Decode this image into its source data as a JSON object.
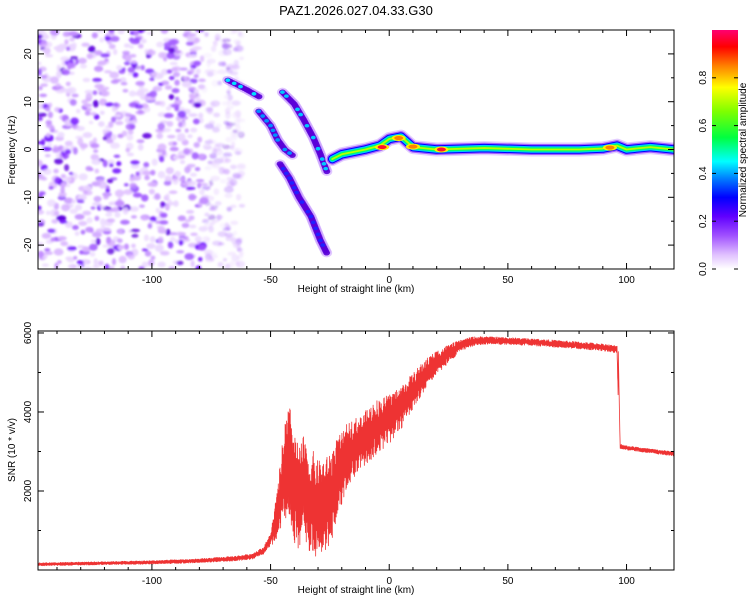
{
  "chart_data": [
    {
      "id": "spectrogram",
      "type": "heatmap",
      "title": "PAZ1.2026.027.04.33.G30",
      "xlabel": "Height of straight line (km)",
      "ylabel": "Frequency (Hz)",
      "xlim": [
        -148,
        120
      ],
      "ylim": [
        -25,
        25
      ],
      "xticks": [
        -100,
        -50,
        0,
        50,
        100
      ],
      "yticks": [
        -20,
        -10,
        0,
        10,
        20
      ],
      "colorbar": {
        "label": "Normalized spectral amplitude",
        "range": [
          0,
          1
        ],
        "ticks": [
          "0.0",
          "0.2",
          "0.4",
          "0.6",
          "0.8"
        ],
        "colors": [
          "#ffffff",
          "#c080ff",
          "#7000ff",
          "#0000ff",
          "#00ffff",
          "#00ff00",
          "#ffff00",
          "#ff8000",
          "#ff0000",
          "#ff0080"
        ]
      },
      "features": {
        "noise_region_x": [
          -148,
          -68
        ],
        "main_ridge": [
          [
            -68,
            14.5
          ],
          [
            -60,
            12.5
          ],
          [
            -54,
            10.8
          ]
        ],
        "upper_branch": [
          [
            -45,
            12
          ],
          [
            -40,
            9.5
          ],
          [
            -36,
            6.2
          ],
          [
            -32,
            2.5
          ],
          [
            -29,
            -1
          ],
          [
            -26,
            -5
          ]
        ],
        "middle_branch": [
          [
            -55,
            8
          ],
          [
            -50,
            5
          ],
          [
            -47,
            2
          ],
          [
            -44,
            0
          ],
          [
            -40,
            -1.5
          ]
        ],
        "lower_branch": [
          [
            -46,
            -3
          ],
          [
            -42,
            -6
          ],
          [
            -38,
            -10
          ],
          [
            -33,
            -14
          ],
          [
            -29,
            -19
          ],
          [
            -26,
            -22
          ]
        ],
        "tone_track": [
          [
            -24,
            -2
          ],
          [
            -20,
            -1
          ],
          [
            -10,
            0
          ],
          [
            -4,
            0.8
          ],
          [
            0,
            2.2
          ],
          [
            5,
            2.7
          ],
          [
            10,
            0.5
          ],
          [
            20,
            0
          ],
          [
            40,
            0.3
          ],
          [
            60,
            0
          ],
          [
            80,
            0
          ],
          [
            90,
            0.2
          ],
          [
            96,
            0.8
          ],
          [
            100,
            0
          ],
          [
            110,
            0.5
          ],
          [
            120,
            0
          ]
        ],
        "peaks": [
          [
            -3,
            0.5
          ],
          [
            22,
            0
          ],
          [
            93,
            0.4
          ],
          [
            4,
            2.4
          ],
          [
            10,
            0.6
          ]
        ]
      }
    },
    {
      "id": "snr",
      "type": "line",
      "xlabel": "Height of straight line (km)",
      "ylabel": "SNR (10 * v/v)",
      "xlim": [
        -148,
        120
      ],
      "ylim": [
        0,
        6050
      ],
      "xticks": [
        -100,
        -50,
        0,
        50,
        100
      ],
      "yticks": [
        2000,
        4000,
        6000
      ],
      "series": [
        {
          "name": "SNR",
          "color": "#ee3333",
          "x": [
            -148,
            -120,
            -100,
            -80,
            -65,
            -58,
            -53,
            -50,
            -47,
            -44,
            -42,
            -40,
            -38,
            -36,
            -34,
            -32,
            -30,
            -28,
            -26,
            -24,
            -22,
            -20,
            -18,
            -15,
            -12,
            -9,
            -6,
            -3,
            0,
            5,
            10,
            15,
            20,
            25,
            30,
            35,
            40,
            50,
            60,
            70,
            80,
            90,
            96,
            97,
            100,
            110,
            120
          ],
          "values": [
            150,
            180,
            200,
            240,
            300,
            350,
            500,
            800,
            1500,
            2700,
            2900,
            2300,
            2000,
            2300,
            1800,
            1900,
            1700,
            1800,
            1900,
            2100,
            2500,
            2700,
            3000,
            3200,
            3300,
            3500,
            3700,
            3800,
            3900,
            4200,
            4600,
            5000,
            5300,
            5500,
            5700,
            5800,
            5830,
            5810,
            5780,
            5740,
            5700,
            5650,
            5600,
            3150,
            3100,
            3020,
            2950
          ],
          "noise": [
            40,
            40,
            45,
            50,
            60,
            70,
            90,
            150,
            700,
            1300,
            1500,
            1400,
            1300,
            1300,
            1200,
            1300,
            1250,
            1200,
            1150,
            1200,
            1000,
            900,
            800,
            750,
            700,
            700,
            700,
            650,
            650,
            550,
            450,
            380,
            300,
            240,
            140,
            120,
            100,
            90,
            90,
            90,
            90,
            90,
            90,
            60,
            55,
            55,
            55
          ]
        }
      ]
    }
  ]
}
